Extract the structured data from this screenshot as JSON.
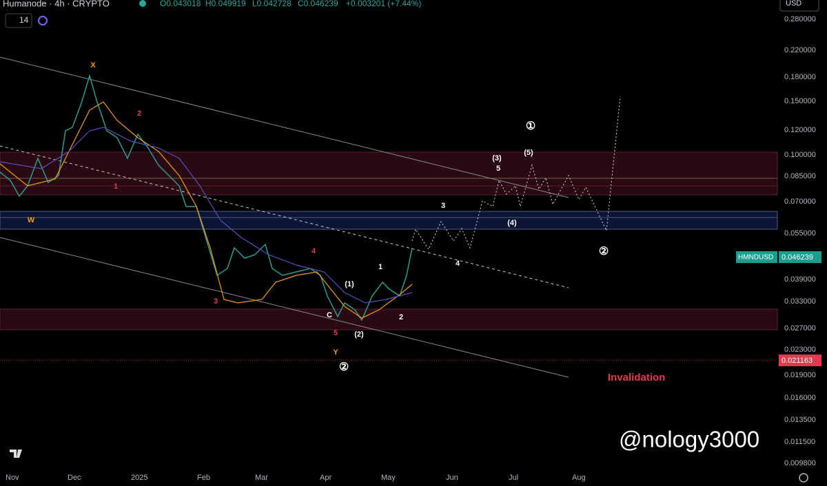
{
  "header": {
    "symbol": "Humanode · 4h · CRYPTO",
    "ohlc": {
      "open": "O0.043018",
      "high": "H0.049919",
      "low": "L0.042728",
      "close": "C0.046239",
      "change": "+0.003201 (+7.44%)"
    },
    "indicator": "14",
    "currency": "USD"
  },
  "price_axis": {
    "labels": [
      "0.280000",
      "0.220000",
      "0.180000",
      "0.150000",
      "0.120000",
      "0.100000",
      "0.085000",
      "0.070000",
      "0.055000",
      "0.039000",
      "0.033000",
      "0.027000",
      "0.023000",
      "0.019000",
      "0.016000",
      "0.013500",
      "0.011500",
      "0.009800"
    ],
    "last_price": {
      "symbol": "HMNDUSD",
      "value": "0.046239"
    },
    "invalidation_price": "0.021163"
  },
  "time_axis": {
    "labels": [
      "Nov",
      "Dec",
      "2025",
      "Feb",
      "Mar",
      "Apr",
      "May",
      "Jun",
      "Jul",
      "Aug"
    ]
  },
  "annotations": [
    "X",
    "2",
    "1",
    "W",
    "3",
    "4",
    "C",
    "5",
    "Y",
    "②",
    "(1)",
    "(2)",
    "1",
    "2",
    "3",
    "4",
    "(3)",
    "5",
    "(5)",
    "①",
    "(4)",
    "②"
  ],
  "invalidation": "Invalidation",
  "watermark": "@nology3000"
}
